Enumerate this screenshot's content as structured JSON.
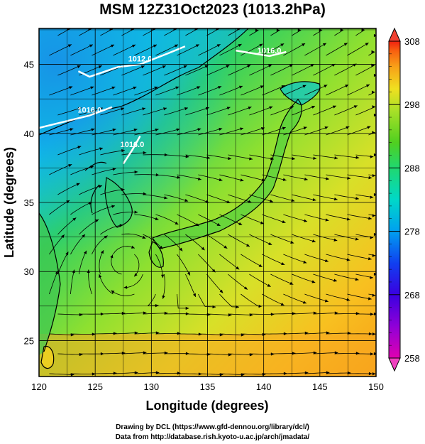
{
  "title": "MSM 12Z31Oct2023 (1013.2hPa)",
  "map": {
    "x_axis": {
      "label": "Longitude (degrees)",
      "range": [
        120,
        150
      ],
      "ticks": [
        120,
        125,
        130,
        135,
        140,
        145,
        150
      ]
    },
    "y_axis": {
      "label": "Latitude  (degrees)",
      "range": [
        22.4,
        47.6
      ],
      "ticks": [
        25,
        30,
        35,
        40,
        45
      ]
    },
    "grid": true,
    "field": "temperature (K) with streamlines",
    "isobars": [
      {
        "label": "1016.0",
        "points": [
          [
            120.0,
            40.4
          ],
          [
            122.5,
            40.9
          ],
          [
            124.5,
            41.3
          ],
          [
            126.5,
            41.9
          ]
        ]
      },
      {
        "label": "1012.0",
        "points": [
          [
            123.5,
            44.5
          ],
          [
            124.5,
            44.1
          ],
          [
            127.0,
            44.8
          ],
          [
            129.0,
            45.0
          ],
          [
            131.5,
            45.8
          ],
          [
            133.0,
            46.3
          ]
        ]
      },
      {
        "label": "1016.0",
        "points": [
          [
            137.5,
            46.0
          ],
          [
            139.0,
            45.8
          ],
          [
            140.5,
            45.6
          ],
          [
            142.0,
            45.9
          ]
        ]
      },
      {
        "label": "1016.0",
        "points": [
          [
            127.5,
            37.8
          ],
          [
            128.3,
            38.8
          ],
          [
            129.0,
            39.8
          ]
        ]
      }
    ]
  },
  "colorbar": {
    "ticks": [
      258,
      268,
      278,
      288,
      298,
      308
    ],
    "colors": [
      "#e000b0",
      "#9000d8",
      "#3a00e0",
      "#1040f0",
      "#00a0f0",
      "#00d8c8",
      "#20d870",
      "#50d020",
      "#a8e028",
      "#f0e020",
      "#f8a018",
      "#f86010",
      "#f02010"
    ]
  },
  "credits": {
    "line1": "Drawing by DCL (https://www.gfd-dennou.org/library/dcl/)",
    "line2": "Data from http://database.rish.kyoto-u.ac.jp/arch/jmadata/"
  }
}
